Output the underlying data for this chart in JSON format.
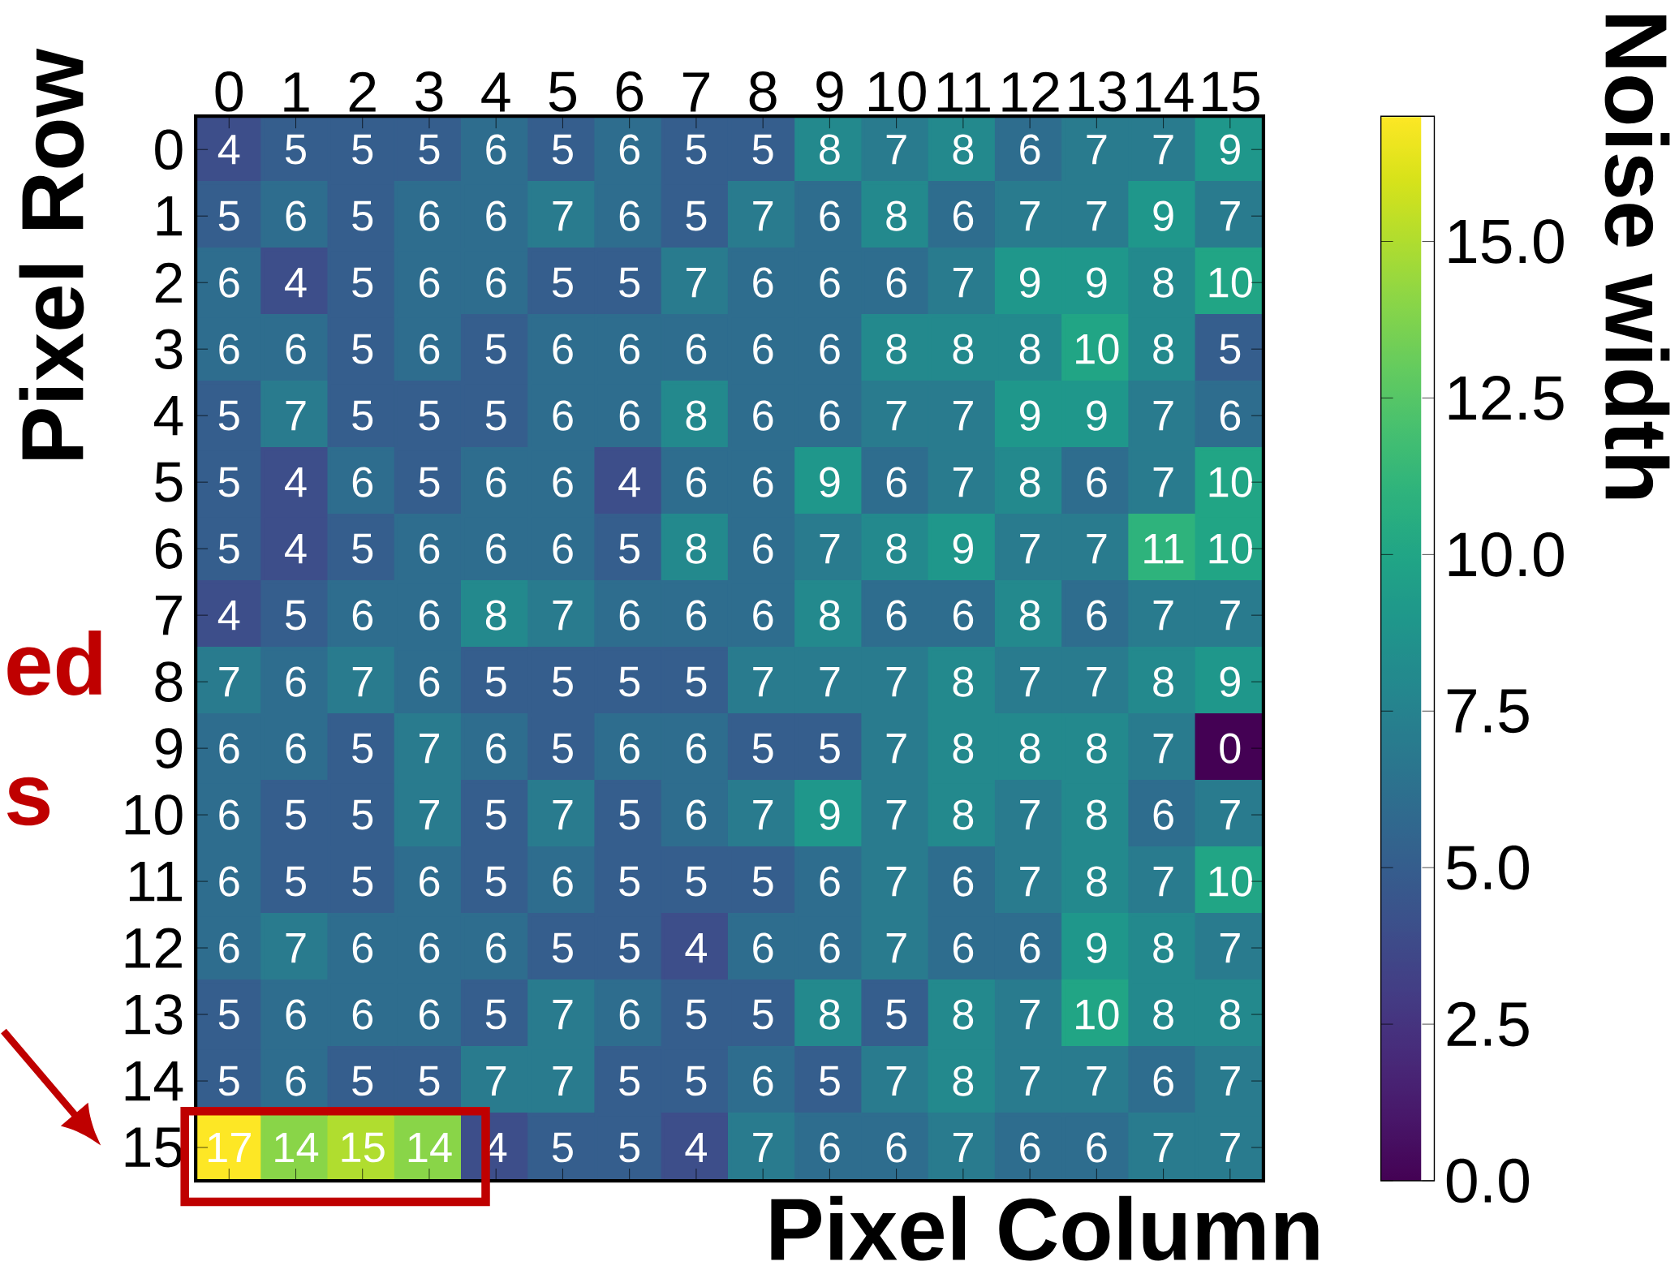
{
  "chart_data": {
    "type": "heatmap",
    "xlabel": "Pixel Column",
    "ylabel": "Pixel Row",
    "clabel": "Noise width",
    "categories": [
      "0",
      "1",
      "2",
      "3",
      "4",
      "5",
      "6",
      "7",
      "8",
      "9",
      "10",
      "11",
      "12",
      "13",
      "14",
      "15"
    ],
    "y_categories": [
      "0",
      "1",
      "2",
      "3",
      "4",
      "5",
      "6",
      "7",
      "8",
      "9",
      "10",
      "11",
      "12",
      "13",
      "14",
      "15"
    ],
    "cells": [
      [
        4,
        5,
        5,
        5,
        6,
        5,
        6,
        5,
        5,
        8,
        7,
        8,
        6,
        7,
        7,
        9
      ],
      [
        5,
        6,
        5,
        6,
        6,
        7,
        6,
        5,
        7,
        6,
        8,
        6,
        7,
        7,
        9,
        7
      ],
      [
        6,
        4,
        5,
        6,
        6,
        5,
        5,
        7,
        6,
        6,
        6,
        7,
        9,
        9,
        8,
        10
      ],
      [
        6,
        6,
        5,
        6,
        5,
        6,
        6,
        6,
        6,
        6,
        8,
        8,
        8,
        10,
        8,
        5
      ],
      [
        5,
        7,
        5,
        5,
        5,
        6,
        6,
        8,
        6,
        6,
        7,
        7,
        9,
        9,
        7,
        6
      ],
      [
        5,
        4,
        6,
        5,
        6,
        6,
        4,
        6,
        6,
        9,
        6,
        7,
        8,
        6,
        7,
        10
      ],
      [
        5,
        4,
        5,
        6,
        6,
        6,
        5,
        8,
        6,
        7,
        8,
        9,
        7,
        7,
        11,
        10
      ],
      [
        4,
        5,
        6,
        6,
        8,
        7,
        6,
        6,
        6,
        8,
        6,
        6,
        8,
        6,
        7,
        7
      ],
      [
        7,
        6,
        7,
        6,
        5,
        5,
        5,
        5,
        7,
        7,
        7,
        8,
        7,
        7,
        8,
        9
      ],
      [
        6,
        6,
        5,
        7,
        6,
        5,
        6,
        6,
        5,
        5,
        7,
        8,
        8,
        8,
        7,
        0
      ],
      [
        6,
        5,
        5,
        7,
        5,
        7,
        5,
        6,
        7,
        9,
        7,
        8,
        7,
        8,
        6,
        7
      ],
      [
        6,
        5,
        5,
        6,
        5,
        6,
        5,
        5,
        5,
        6,
        7,
        6,
        7,
        8,
        7,
        10
      ],
      [
        6,
        7,
        6,
        6,
        6,
        5,
        5,
        4,
        6,
        6,
        7,
        6,
        6,
        9,
        8,
        7
      ],
      [
        5,
        6,
        6,
        6,
        5,
        7,
        6,
        5,
        5,
        8,
        5,
        8,
        7,
        10,
        8,
        8
      ],
      [
        5,
        6,
        5,
        5,
        7,
        7,
        5,
        5,
        6,
        5,
        7,
        8,
        7,
        7,
        6,
        7
      ],
      [
        17,
        14,
        15,
        14,
        4,
        5,
        5,
        4,
        7,
        6,
        6,
        7,
        6,
        6,
        7,
        7
      ]
    ],
    "data_labels": true,
    "clim": [
      0,
      17
    ],
    "cticks": [
      {
        "value": 0,
        "label": "0.0"
      },
      {
        "value": 2.5,
        "label": "2.5"
      },
      {
        "value": 5,
        "label": "5.0"
      },
      {
        "value": 7.5,
        "label": "7.5"
      },
      {
        "value": 10,
        "label": "10.0"
      },
      {
        "value": 12.5,
        "label": "12.5"
      },
      {
        "value": 15,
        "label": "15.0"
      }
    ],
    "annotations": [
      "ed",
      "s"
    ]
  }
}
